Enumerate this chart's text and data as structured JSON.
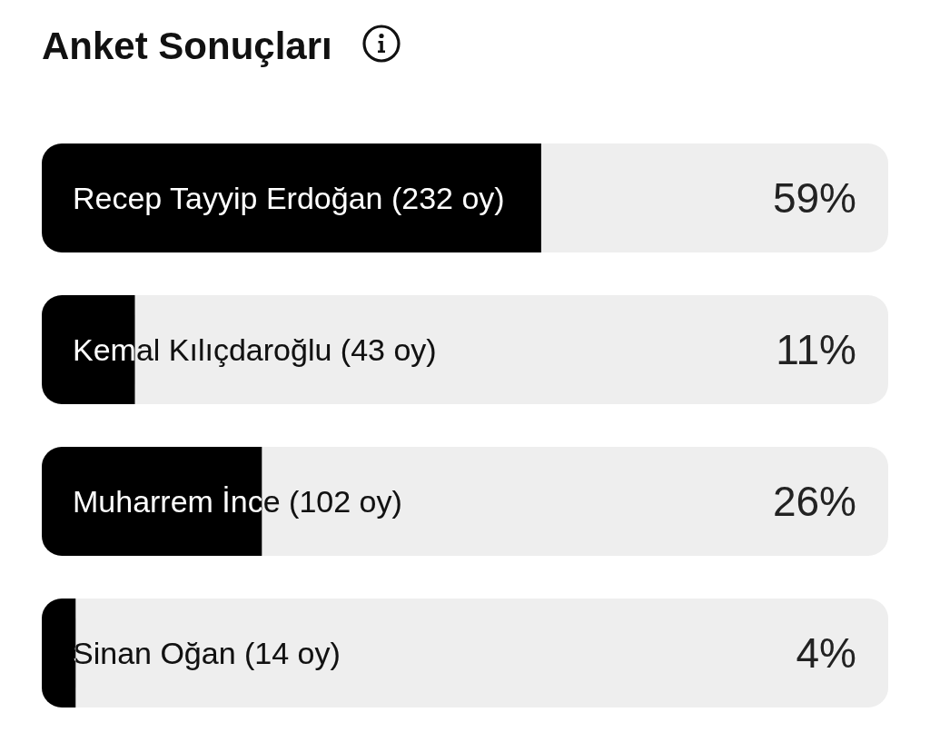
{
  "chart_data": {
    "type": "bar",
    "orientation": "horizontal",
    "title": "Anket Sonuçları",
    "categories": [
      "Recep Tayyip Erdoğan (232 oy)",
      "Kemal Kılıçdaroğlu (43 oy)",
      "Muharrem İnce (102 oy)",
      "Sinan Oğan (14 oy)"
    ],
    "values": [
      59,
      11,
      26,
      4
    ],
    "value_labels": [
      "59%",
      "11%",
      "26%",
      "4%"
    ],
    "color": "#000000",
    "xlim": [
      0,
      100
    ],
    "tick_labels": "y"
  }
}
